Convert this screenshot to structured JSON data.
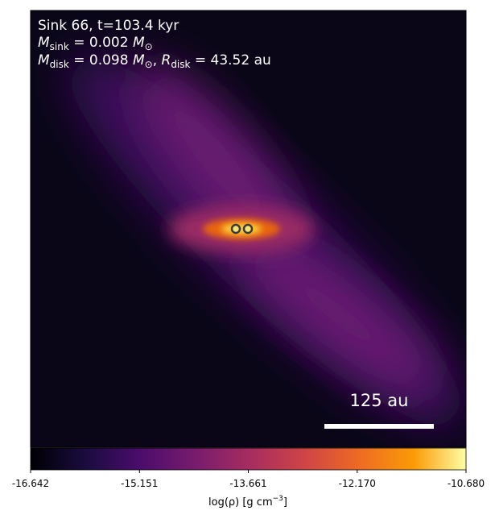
{
  "chart_data": {
    "type": "density-map",
    "annotation": {
      "line1": "Sink 66, t=103.4 kyr",
      "line2": [
        "M",
        "sink",
        " = 0.002 ",
        "M",
        "⊙"
      ],
      "line3": [
        "M",
        "disk",
        " = 0.098 ",
        "M",
        "⊙",
        ", ",
        "R",
        "disk",
        " = 43.52 au"
      ]
    },
    "scalebar_label": "125 au",
    "colorbar": {
      "lim": [
        -16.642,
        -10.68
      ],
      "ticks": [
        -16.642,
        -15.151,
        -13.661,
        {
          "value": -12.17,
          "label": "-12.170"
        },
        {
          "value": -10.68,
          "label": "-10.680"
        }
      ],
      "label": [
        "log(ρ) [g cm",
        "−3",
        "]"
      ]
    }
  }
}
